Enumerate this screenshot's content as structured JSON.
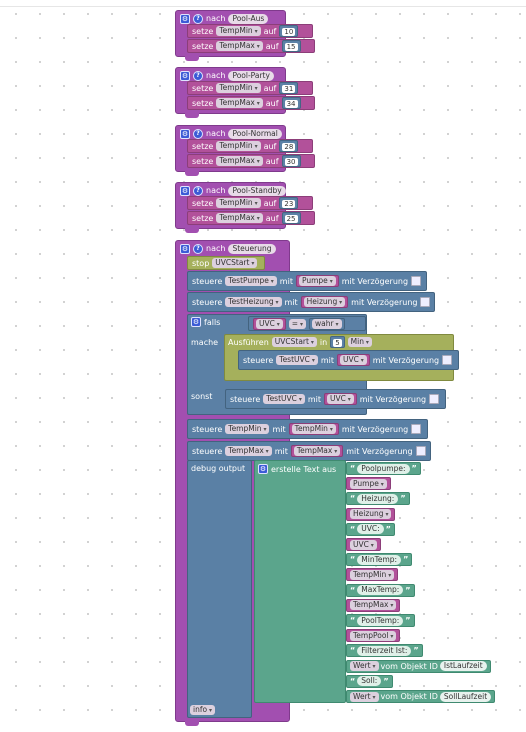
{
  "procedures": [
    {
      "keyword": "nach",
      "name": "Pool-Aus",
      "rows": [
        {
          "set": "setze",
          "var": "TempMin",
          "auf": "auf",
          "value": "10"
        },
        {
          "set": "setze",
          "var": "TempMax",
          "auf": "auf",
          "value": "15"
        }
      ]
    },
    {
      "keyword": "nach",
      "name": "Pool-Party",
      "rows": [
        {
          "set": "setze",
          "var": "TempMin",
          "auf": "auf",
          "value": "31"
        },
        {
          "set": "setze",
          "var": "TempMax",
          "auf": "auf",
          "value": "34"
        }
      ]
    },
    {
      "keyword": "nach",
      "name": "Pool-Normal",
      "rows": [
        {
          "set": "setze",
          "var": "TempMin",
          "auf": "auf",
          "value": "28"
        },
        {
          "set": "setze",
          "var": "TempMax",
          "auf": "auf",
          "value": "30"
        }
      ]
    },
    {
      "keyword": "nach",
      "name": "Pool-Standby",
      "rows": [
        {
          "set": "setze",
          "var": "TempMin",
          "auf": "auf",
          "value": "23"
        },
        {
          "set": "setze",
          "var": "TempMax",
          "auf": "auf",
          "value": "25"
        }
      ]
    }
  ],
  "steuerung": {
    "keyword": "nach",
    "name": "Steuerung",
    "stop": {
      "label": "stop",
      "value": "UVCStart"
    },
    "control_rows": [
      {
        "label": "steuere",
        "obj": "TestPumpe",
        "mit": "mit",
        "var": "Pumpe",
        "delay": "mit Verzögerung"
      },
      {
        "label": "steuere",
        "obj": "TestHeizung",
        "mit": "mit",
        "var": "Heizung",
        "delay": "mit Verzögerung"
      }
    ],
    "if": {
      "falls": "falls",
      "var": "UVC",
      "op": "=",
      "val": "wahr",
      "mache": "mache",
      "sonst": "sonst",
      "run": {
        "label": "Ausführen",
        "timer": "UVCStart",
        "in": "in",
        "n": "5",
        "unit": "Min"
      },
      "then_row": {
        "label": "steuere",
        "obj": "TestUVC",
        "mit": "mit",
        "var": "UVC",
        "delay": "mit Verzögerung"
      },
      "else_row": {
        "label": "steuere",
        "obj": "TestUVC",
        "mit": "mit",
        "var": "UVC",
        "delay": "mit Verzögerung"
      }
    },
    "control_rows2": [
      {
        "label": "steuere",
        "obj": "TempMin",
        "mit": "mit",
        "var": "TempMin",
        "delay": "mit Verzögerung"
      },
      {
        "label": "steuere",
        "obj": "TempMax",
        "mit": "mit",
        "var": "TempMax",
        "delay": "mit Verzögerung"
      }
    ],
    "debug": {
      "label": "debug output",
      "create": "erstelle Text aus",
      "items": [
        {
          "kind": "str",
          "text": "Poolpumpe: "
        },
        {
          "kind": "var",
          "text": "Pumpe"
        },
        {
          "kind": "str",
          "text": " Heizung: "
        },
        {
          "kind": "var",
          "text": "Heizung"
        },
        {
          "kind": "str",
          "text": " UVC: "
        },
        {
          "kind": "var",
          "text": "UVC"
        },
        {
          "kind": "str",
          "text": " MinTemp: "
        },
        {
          "kind": "var",
          "text": "TempMin"
        },
        {
          "kind": "str",
          "text": " MaxTemp: "
        },
        {
          "kind": "var",
          "text": "TempMax"
        },
        {
          "kind": "str",
          "text": " PoolTemp: "
        },
        {
          "kind": "var",
          "text": "TempPool"
        },
        {
          "kind": "str",
          "text": " Filterzeit Ist: "
        },
        {
          "kind": "obj",
          "dd": "Wert",
          "from": "vom Objekt ID",
          "id": "IstLaufzeit"
        },
        {
          "kind": "str",
          "text": " Soll: "
        },
        {
          "kind": "obj",
          "dd": "Wert",
          "from": "vom Objekt ID",
          "id": "SollLaufzeit"
        }
      ],
      "level": "info"
    }
  },
  "icons": {
    "gear": "gear-icon",
    "help": "help-icon"
  },
  "colors": {
    "procedure": "#a24fb0",
    "variable": "#b2519a",
    "number": "#5c81a6",
    "control": "#5a80a5",
    "text": "#5ba58c",
    "timer": "#a5b05c"
  }
}
